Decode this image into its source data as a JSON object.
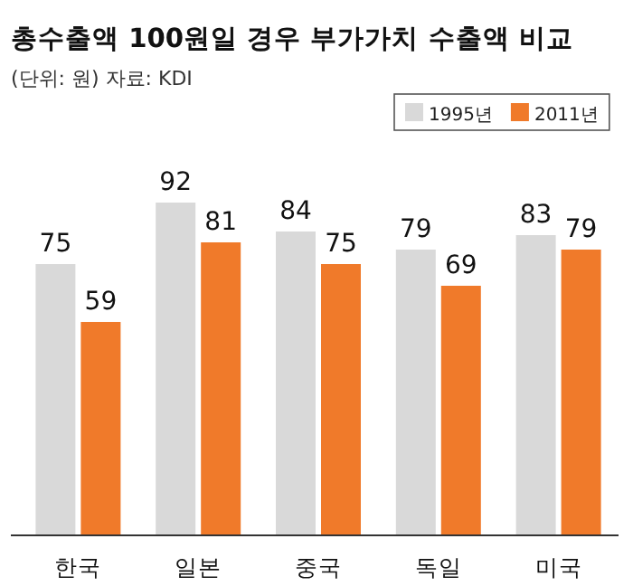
{
  "chart_data": {
    "type": "bar",
    "title": "총수출액 100원일 경우 부가가치 수출액 비교",
    "subtitle": "(단위: 원) 자료: KDI",
    "categories": [
      "한국",
      "일본",
      "중국",
      "독일",
      "미국"
    ],
    "series": [
      {
        "name": "1995년",
        "color": "#d9d9d9",
        "values": [
          75,
          92,
          84,
          79,
          83
        ]
      },
      {
        "name": "2011년",
        "color": "#f07a2a",
        "values": [
          59,
          81,
          75,
          69,
          79
        ]
      }
    ],
    "data_labels": true,
    "legend": "top right"
  }
}
